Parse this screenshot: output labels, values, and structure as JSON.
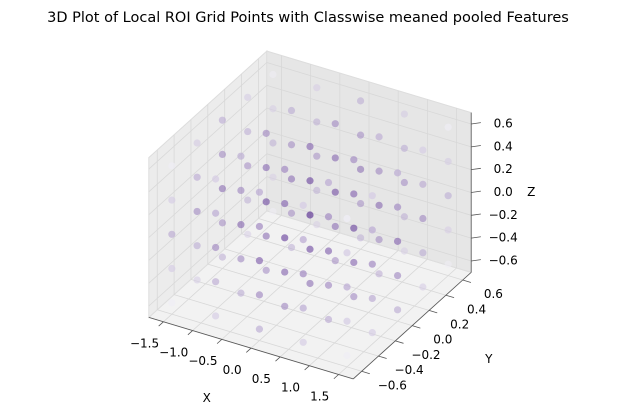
{
  "chart_data": {
    "type": "scatter3d",
    "title": "3D Plot of Local ROI Grid Points with Classwise meaned pooled Features",
    "x_label": "X",
    "y_label": "Y",
    "z_label": "Z",
    "x": [
      -1.5,
      -0.75,
      0,
      0.75,
      1.5
    ],
    "y": [
      -0.6,
      -0.3,
      0,
      0.3,
      0.6
    ],
    "z": [
      -0.6,
      -0.3,
      0,
      0.3,
      0.6
    ],
    "values": [
      [
        [
          0.1,
          0.25,
          0.4,
          0.25,
          0.1
        ],
        [
          0.25,
          0.4,
          0.55,
          0.4,
          0.25
        ],
        [
          0.4,
          0.55,
          0.7,
          0.55,
          0.4
        ],
        [
          0.25,
          0.4,
          0.55,
          0.4,
          0.25
        ],
        [
          0.1,
          0.25,
          0.4,
          0.25,
          0.1
        ]
      ],
      [
        [
          0.25,
          0.4,
          0.55,
          0.4,
          0.25
        ],
        [
          0.4,
          0.55,
          0.7,
          0.55,
          0.4
        ],
        [
          0.55,
          0.7,
          0.85,
          0.7,
          0.55
        ],
        [
          0.4,
          0.55,
          0.7,
          0.55,
          0.4
        ],
        [
          0.25,
          0.4,
          0.55,
          0.4,
          0.25
        ]
      ],
      [
        [
          0.4,
          0.55,
          0.7,
          0.55,
          0.4
        ],
        [
          0.55,
          0.7,
          0.85,
          0.7,
          0.55
        ],
        [
          0.7,
          0.85,
          1,
          0.85,
          0.7
        ],
        [
          0.55,
          0.7,
          0.85,
          0.7,
          0.55
        ],
        [
          0.4,
          0.55,
          0.7,
          0.55,
          0.4
        ]
      ],
      [
        [
          0.25,
          0.4,
          0.55,
          0.4,
          0.25
        ],
        [
          0.4,
          0.55,
          0.7,
          0.55,
          0.4
        ],
        [
          0.55,
          0.7,
          0.85,
          0.7,
          0.55
        ],
        [
          0.4,
          0.55,
          0.7,
          0.55,
          0.4
        ],
        [
          0.25,
          0.4,
          0.55,
          0.4,
          0.25
        ]
      ],
      [
        [
          0.1,
          0.25,
          0.4,
          0.25,
          0.1
        ],
        [
          0.25,
          0.4,
          0.55,
          0.4,
          0.25
        ],
        [
          0.4,
          0.55,
          0.7,
          0.55,
          0.4
        ],
        [
          0.25,
          0.4,
          0.55,
          0.4,
          0.25
        ],
        [
          0.1,
          0.25,
          0.4,
          0.25,
          0.1
        ]
      ]
    ],
    "colormap": [
      "#efedf5",
      "#54278f"
    ],
    "xlim": [
      -1.75,
      1.75
    ],
    "ylim": [
      -0.7,
      0.7
    ],
    "zlim": [
      -0.7,
      0.7
    ],
    "xticks": [
      {
        "value": -1.5,
        "label": "−1.5"
      },
      {
        "value": -1,
        "label": "−1.0"
      },
      {
        "value": -0.5,
        "label": "−0.5"
      },
      {
        "value": 0,
        "label": "0.0"
      },
      0.5,
      {
        "value": 1,
        "label": "1.0"
      },
      1.5
    ],
    "yticks": [
      {
        "value": -0.6,
        "label": "−0.6"
      },
      {
        "value": -0.4,
        "label": "−0.4"
      },
      {
        "value": -0.2,
        "label": "−0.2"
      },
      {
        "value": 0,
        "label": "0.0"
      },
      0.2,
      0.4,
      0.6
    ],
    "zticks": [
      {
        "value": -0.6,
        "label": "−0.6"
      },
      {
        "value": -0.4,
        "label": "−0.4"
      },
      {
        "value": -0.2,
        "label": "−0.2"
      },
      {
        "value": 0,
        "label": "0.0"
      },
      0.2,
      0.4,
      0.6
    ],
    "grid": true
  }
}
